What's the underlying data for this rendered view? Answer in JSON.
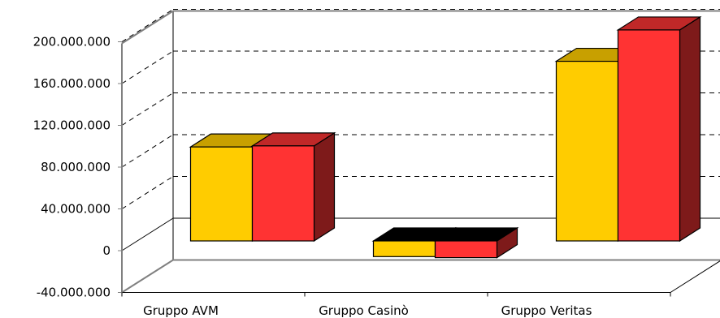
{
  "chart_data": {
    "type": "bar",
    "style": "3d-clustered",
    "categories": [
      "Gruppo AVM",
      "Gruppo Casinò",
      "Gruppo Veritas"
    ],
    "series": [
      {
        "color": "#FFCC00",
        "top_color": "#C8A000",
        "side_color": "#A08000",
        "values": [
          90000000,
          -15000000,
          172000000
        ]
      },
      {
        "color": "#FF3333",
        "top_color": "#C02828",
        "side_color": "#7E1A1A",
        "values": [
          91000000,
          -16000000,
          202000000
        ]
      }
    ],
    "yticks": [
      "-40.000.000",
      "0",
      "40.000.000",
      "80.000.000",
      "120.000.000",
      "160.000.000",
      "200.000.000"
    ],
    "ylim": [
      -40000000,
      200000000
    ],
    "grid": true,
    "grid_style": "dashed",
    "legend": "none"
  }
}
